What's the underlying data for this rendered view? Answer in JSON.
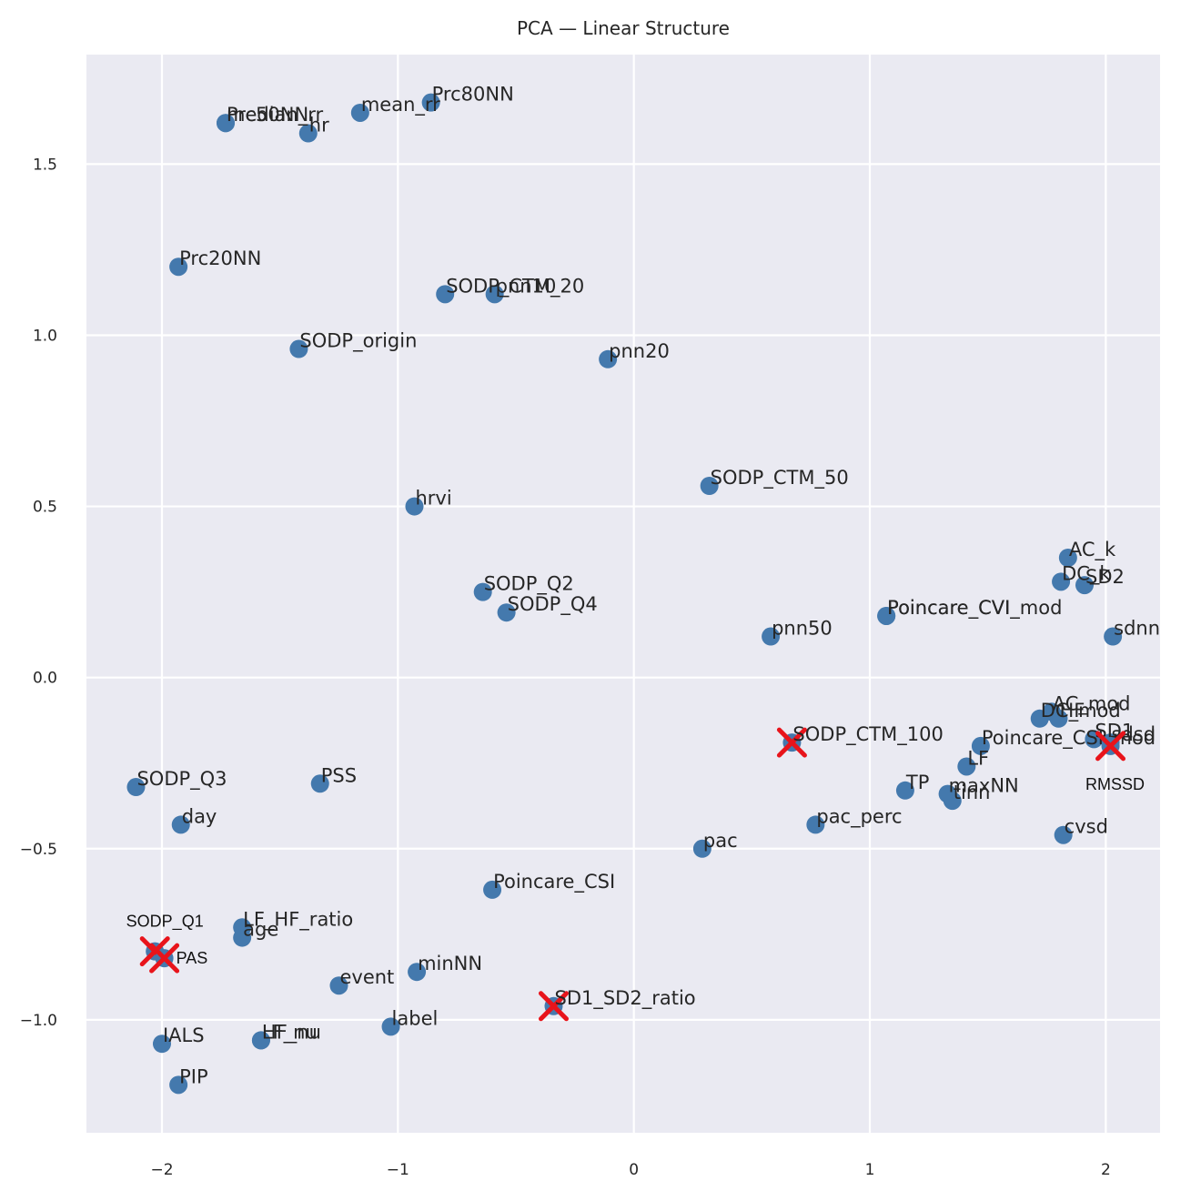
{
  "chart_data": {
    "type": "scatter",
    "title": "PCA — Linear Structure",
    "xlabel": "",
    "ylabel": "",
    "xlim": [
      -2.32,
      2.23
    ],
    "ylim": [
      -1.33,
      1.82
    ],
    "xticks": [
      -2,
      -1,
      0,
      1,
      2
    ],
    "xtick_labels": [
      "−2",
      "−1",
      "0",
      "1",
      "2"
    ],
    "yticks": [
      -1.0,
      -0.5,
      0.0,
      0.5,
      1.0,
      1.5
    ],
    "ytick_labels": [
      "−1.0",
      "−0.5",
      "0.0",
      "0.5",
      "1.0",
      "1.5"
    ],
    "grid": true,
    "colors": {
      "background": "#eaeaf2",
      "grid": "#ffffff",
      "point": "#4479ad",
      "highlight": "#e8141b"
    },
    "points": [
      {
        "label": "Prc80NN",
        "x": -0.86,
        "y": 1.68
      },
      {
        "label": "mean_rr",
        "x": -1.16,
        "y": 1.65
      },
      {
        "label": "median_rr",
        "x": -1.73,
        "y": 1.62
      },
      {
        "label": "Prc50NN",
        "x": -1.73,
        "y": 1.62
      },
      {
        "label": "hr",
        "x": -1.38,
        "y": 1.59
      },
      {
        "label": "Prc20NN",
        "x": -1.93,
        "y": 1.2
      },
      {
        "label": "SODP_CTM_20",
        "x": -0.8,
        "y": 1.12
      },
      {
        "label": "pnn10",
        "x": -0.59,
        "y": 1.12
      },
      {
        "label": "SODP_origin",
        "x": -1.42,
        "y": 0.96
      },
      {
        "label": "pnn20",
        "x": -0.11,
        "y": 0.93
      },
      {
        "label": "SODP_CTM_50",
        "x": 0.32,
        "y": 0.56
      },
      {
        "label": "hrvi",
        "x": -0.93,
        "y": 0.5
      },
      {
        "label": "AC_k",
        "x": 1.84,
        "y": 0.35
      },
      {
        "label": "DC_k",
        "x": 1.81,
        "y": 0.28
      },
      {
        "label": "SD2",
        "x": 1.91,
        "y": 0.27
      },
      {
        "label": "SODP_Q2",
        "x": -0.64,
        "y": 0.25
      },
      {
        "label": "SODP_Q4",
        "x": -0.54,
        "y": 0.19
      },
      {
        "label": "Poincare_CVI_mod",
        "x": 1.07,
        "y": 0.18
      },
      {
        "label": "Poincare_CVI",
        "x": 1.07,
        "y": 0.18
      },
      {
        "label": "pnn50",
        "x": 0.58,
        "y": 0.12
      },
      {
        "label": "sdnn",
        "x": 2.03,
        "y": 0.12
      },
      {
        "label": "AC_mod",
        "x": 1.77,
        "y": -0.1
      },
      {
        "label": "DC_mod",
        "x": 1.72,
        "y": -0.12
      },
      {
        "label": "HF",
        "x": 1.8,
        "y": -0.12
      },
      {
        "label": "Poincare_CSI_mod",
        "x": 1.47,
        "y": -0.2
      },
      {
        "label": "SD1",
        "x": 1.95,
        "y": -0.18
      },
      {
        "label": "sdsd",
        "x": 2.02,
        "y": -0.19
      },
      {
        "label": "LF",
        "x": 1.41,
        "y": -0.26
      },
      {
        "label": "TP",
        "x": 1.15,
        "y": -0.33
      },
      {
        "label": "maxNN",
        "x": 1.33,
        "y": -0.34
      },
      {
        "label": "tinn",
        "x": 1.35,
        "y": -0.36
      },
      {
        "label": "pac_perc",
        "x": 0.77,
        "y": -0.43
      },
      {
        "label": "cvsd",
        "x": 1.82,
        "y": -0.46
      },
      {
        "label": "pac",
        "x": 0.29,
        "y": -0.5
      },
      {
        "label": "SODP_Q3",
        "x": -2.11,
        "y": -0.32
      },
      {
        "label": "PSS",
        "x": -1.33,
        "y": -0.31
      },
      {
        "label": "day",
        "x": -1.92,
        "y": -0.43
      },
      {
        "label": "Poincare_CSI",
        "x": -0.6,
        "y": -0.62
      },
      {
        "label": "LF_HF_ratio",
        "x": -1.66,
        "y": -0.73
      },
      {
        "label": "age",
        "x": -1.66,
        "y": -0.76
      },
      {
        "label": "minNN",
        "x": -0.92,
        "y": -0.86
      },
      {
        "label": "event",
        "x": -1.25,
        "y": -0.9
      },
      {
        "label": "label",
        "x": -1.03,
        "y": -1.02
      },
      {
        "label": "IALS",
        "x": -2.0,
        "y": -1.07
      },
      {
        "label": "LF_nu",
        "x": -1.58,
        "y": -1.06
      },
      {
        "label": "HF_nu",
        "x": -1.58,
        "y": -1.06
      },
      {
        "label": "PIP",
        "x": -1.93,
        "y": -1.19
      }
    ],
    "highlighted": [
      {
        "label": "SODP_CTM_100",
        "x": 0.67,
        "y": -0.19
      },
      {
        "label": "SD1_SD2_ratio",
        "x": -0.34,
        "y": -0.96
      },
      {
        "label": "RMSSD",
        "x": 2.02,
        "y": -0.2
      },
      {
        "label": "SODP_Q1",
        "x": -2.03,
        "y": -0.8
      },
      {
        "label": "PAS",
        "x": -1.99,
        "y": -0.82
      }
    ]
  }
}
